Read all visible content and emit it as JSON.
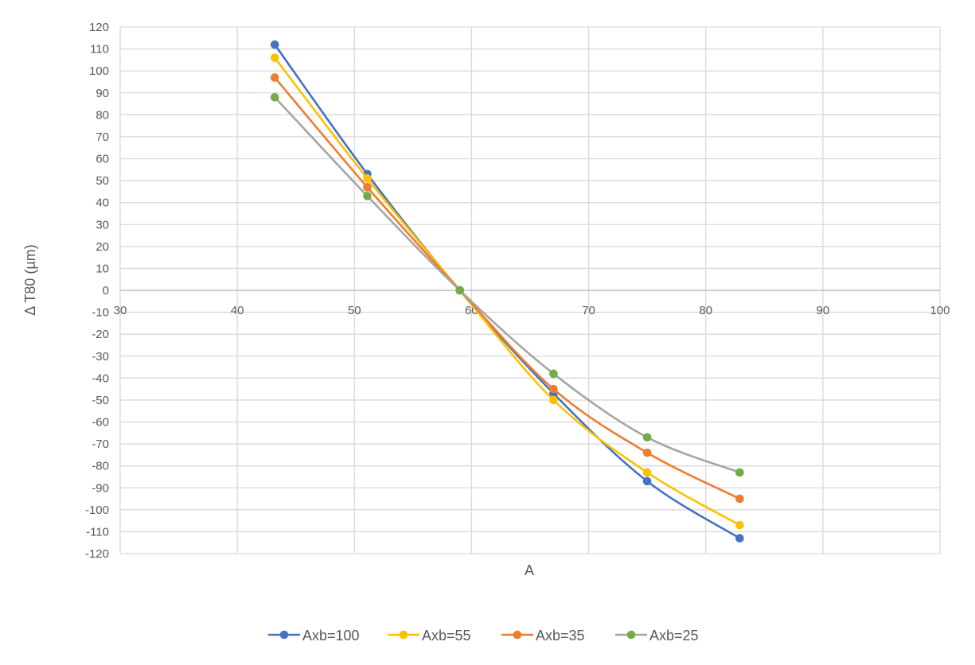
{
  "chart_data": {
    "type": "scatter",
    "xlabel": "A",
    "ylabel": "Δ T80 (µm)",
    "xlim": [
      30,
      100
    ],
    "ylim": [
      -120,
      120
    ],
    "x_ticks": [
      30,
      40,
      50,
      60,
      70,
      80,
      90,
      100
    ],
    "y_ticks": [
      120,
      110,
      100,
      90,
      80,
      70,
      60,
      50,
      40,
      30,
      20,
      10,
      0,
      -10,
      -20,
      -30,
      -40,
      -50,
      -60,
      -70,
      -80,
      -90,
      -100,
      -110,
      -120
    ],
    "grid": true,
    "smooth_lines": true,
    "legend_position": "bottom",
    "x": [
      43.2,
      51.1,
      59.0,
      67.0,
      75.0,
      82.9
    ],
    "series": [
      {
        "name": "Axb=100",
        "color": "#4472C4",
        "values": [
          112,
          53,
          0,
          -47,
          -87,
          -113
        ]
      },
      {
        "name": "Axb=55",
        "color": "#FFC000",
        "values": [
          106,
          51,
          0,
          -50,
          -83,
          -107
        ]
      },
      {
        "name": "Axb=35",
        "color": "#ED7D31",
        "values": [
          97,
          47,
          0,
          -45,
          -74,
          -95
        ]
      },
      {
        "name": "Axb=25",
        "color": "#A5A5A5",
        "marker_color": "#70AD47",
        "values": [
          88,
          43,
          0,
          -38,
          -67,
          -83
        ]
      }
    ]
  }
}
